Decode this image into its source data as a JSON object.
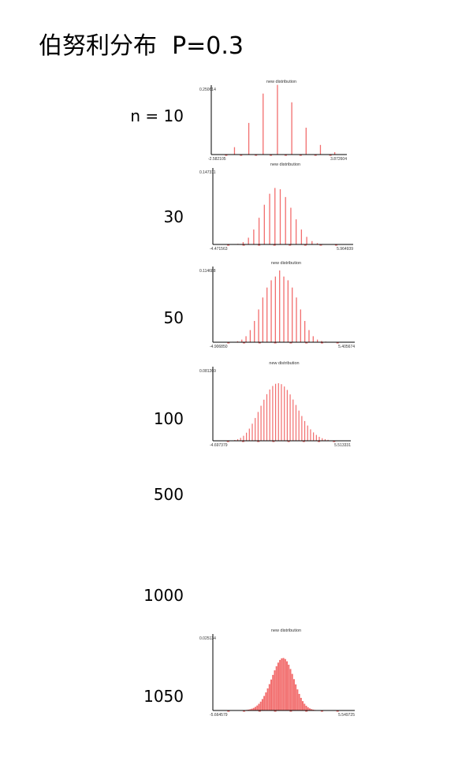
{
  "page": {
    "title": "伯努利分布  P=0.3"
  },
  "n_labels": [
    "n = 10",
    "30",
    "50",
    "100",
    "500",
    "1000",
    "1050"
  ],
  "colors": {
    "bar": "#f26d6d",
    "marker": "#e23c3c",
    "axis": "#000000"
  },
  "chart_data": [
    {
      "type": "bar",
      "n": 10,
      "title": "new distribution",
      "ymax_label": "0.250614",
      "xmin_label": "-2.582105",
      "xmax_label": "3.872604",
      "x": [
        -1.464,
        -0.775,
        -0.085,
        0.605,
        1.295,
        1.985,
        2.675,
        3.365
      ],
      "values": [
        0.0283,
        0.1211,
        0.2335,
        0.2668,
        0.2001,
        0.1029,
        0.0368,
        0.009
      ]
    },
    {
      "type": "bar",
      "n": 30,
      "title": "new distribution",
      "ymax_label": "0.147311",
      "xmin_label": "-4.471563",
      "xmax_label": "5.964939",
      "x": [
        -3.387,
        -2.989,
        -2.59,
        -2.192,
        -1.793,
        -1.395,
        -0.996,
        -0.598,
        -0.199,
        0.199,
        0.598,
        0.996,
        1.395,
        1.793,
        2.192,
        2.59,
        2.989,
        3.387,
        3.786,
        4.184
      ],
      "values": [
        2e-05,
        0.00021,
        0.00125,
        0.0048,
        0.0137,
        0.0303,
        0.0542,
        0.0806,
        0.103,
        0.1147,
        0.1121,
        0.0963,
        0.0745,
        0.051,
        0.0303,
        0.0154,
        0.0068,
        0.0026,
        0.0009,
        0.0002
      ]
    },
    {
      "type": "bar",
      "n": 50,
      "title": "new distribution",
      "ymax_label": "0.114688",
      "xmin_label": "-4.906850",
      "xmax_label": "5.405674",
      "x": [
        -3.086,
        -2.777,
        -2.469,
        -2.16,
        -1.852,
        -1.543,
        -1.235,
        -0.926,
        -0.617,
        -0.309,
        0.0,
        0.309,
        0.617,
        0.926,
        1.235,
        1.543,
        1.852,
        2.16,
        2.469,
        2.777,
        3.086,
        3.395,
        3.703,
        4.012
      ],
      "values": [
        0.0016,
        0.0042,
        0.0096,
        0.0194,
        0.034,
        0.0524,
        0.0715,
        0.0874,
        0.099,
        0.105,
        0.1147,
        0.105,
        0.099,
        0.0874,
        0.0715,
        0.0524,
        0.034,
        0.0194,
        0.0096,
        0.0042,
        0.002,
        0.001,
        0.0005,
        0.0002
      ]
    },
    {
      "type": "bar",
      "n": 100,
      "title": "new distribution",
      "ymax_label": "0.081269",
      "xmin_label": "-4.697379",
      "xmax_label": "5.513331",
      "x": [
        -3.055,
        -2.836,
        -2.618,
        -2.4,
        -2.182,
        -1.964,
        -1.746,
        -1.527,
        -1.309,
        -1.091,
        -0.873,
        -0.655,
        -0.436,
        -0.218,
        0.0,
        0.218,
        0.436,
        0.655,
        0.873,
        1.091,
        1.309,
        1.527,
        1.746,
        1.964,
        2.182,
        2.4,
        2.618,
        2.836,
        3.055,
        3.273,
        3.491,
        3.709,
        3.927
      ],
      "values": [
        0.0009,
        0.0018,
        0.0034,
        0.0058,
        0.0094,
        0.0141,
        0.0198,
        0.0264,
        0.0334,
        0.0406,
        0.0476,
        0.054,
        0.0594,
        0.0635,
        0.066,
        0.0667,
        0.0656,
        0.0629,
        0.0589,
        0.0537,
        0.0478,
        0.0415,
        0.035,
        0.0287,
        0.0229,
        0.0177,
        0.0133,
        0.0097,
        0.0068,
        0.0046,
        0.003,
        0.0019,
        0.0011
      ]
    },
    {
      "type": "bar",
      "n": 1050,
      "title": "new distribution",
      "ymax_label": "0.025134",
      "xmin_label": "-5.664579",
      "xmax_label": "5.549725",
      "x": [
        -3.52,
        -3.38,
        -3.24,
        -3.1,
        -2.96,
        -2.82,
        -2.68,
        -2.54,
        -2.4,
        -2.26,
        -2.12,
        -1.98,
        -1.84,
        -1.7,
        -1.56,
        -1.42,
        -1.28,
        -1.14,
        -1.0,
        -0.86,
        -0.72,
        -0.58,
        -0.44,
        -0.3,
        -0.16,
        -0.02,
        0.12,
        0.26,
        0.4,
        0.54,
        0.68,
        0.82,
        0.96,
        1.1,
        1.24,
        1.38,
        1.52,
        1.66,
        1.8,
        1.94,
        2.08,
        2.22,
        2.36,
        2.5,
        2.64,
        2.78,
        2.92,
        3.06,
        3.2,
        3.34,
        3.48
      ],
      "values": [
        3e-05,
        5e-05,
        8e-05,
        0.00012,
        0.00019,
        0.00029,
        0.00043,
        0.00063,
        0.0009,
        0.00125,
        0.00172,
        0.00232,
        0.00306,
        0.00396,
        0.00503,
        0.00626,
        0.00764,
        0.00914,
        0.01072,
        0.01233,
        0.0139,
        0.01534,
        0.01658,
        0.01751,
        0.01806,
        0.01818,
        0.01783,
        0.01704,
        0.01586,
        0.01437,
        0.01267,
        0.01086,
        0.00904,
        0.00731,
        0.00574,
        0.00438,
        0.00324,
        0.00233,
        0.00163,
        0.0011,
        0.00072,
        0.00046,
        0.00029,
        0.00017,
        0.0001,
        6e-05,
        3e-05,
        2e-05,
        1e-05,
        1e-05,
        0.0
      ]
    }
  ]
}
